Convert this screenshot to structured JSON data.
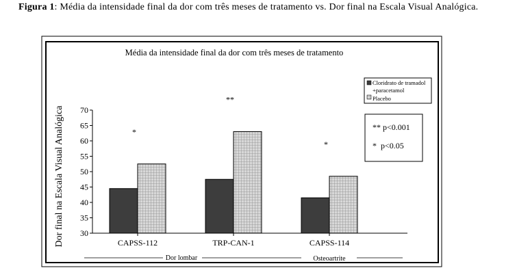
{
  "caption": {
    "label": "Figura 1",
    "text": ": Média da intensidade final da dor com três meses de tratamento vs. Dor final na Escala Visual Analógica."
  },
  "chart_data": {
    "type": "bar",
    "title": "Média da intensidade final da dor com três meses de tratamento",
    "ylabel": "Dor final na Escala Visual Analógica",
    "xlabel": "",
    "ylim": [
      30,
      70
    ],
    "yticks": [
      30,
      35,
      40,
      45,
      50,
      55,
      60,
      65,
      70
    ],
    "categories": [
      "CAPSS-112",
      "TRP-CAN-1",
      "CAPSS-114"
    ],
    "series": [
      {
        "name": "Cloridrato de tramadol + paracetamol",
        "values": [
          44.5,
          47.5,
          41.5
        ],
        "color": "#3d3d3d",
        "pattern": "solid"
      },
      {
        "name": "Placebo",
        "values": [
          52.5,
          63,
          48.5
        ],
        "color": "#cfcfcf",
        "pattern": "grid"
      }
    ],
    "significance_marks": [
      "*",
      "**",
      "*"
    ],
    "group_labels": [
      "Dor lombar",
      "Osteoartrite"
    ],
    "annotations": [
      "** p<0.001",
      "*  p<0.05"
    ],
    "legend_position": "top-right",
    "grid": false
  }
}
